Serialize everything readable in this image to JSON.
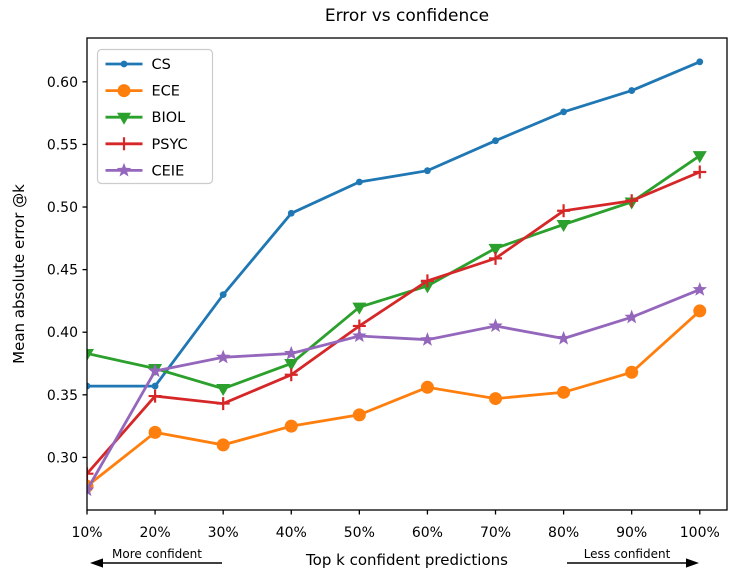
{
  "page": {
    "background": "#ffffff",
    "text_color": "#000000"
  },
  "chart_data": {
    "type": "line",
    "title": "Error vs confidence",
    "xlabel": "Top k confident predictions",
    "ylabel": "Mean absolute error @k",
    "x": [
      10,
      20,
      30,
      40,
      50,
      60,
      70,
      80,
      90,
      100
    ],
    "x_tick_labels": [
      "10%",
      "20%",
      "30%",
      "40%",
      "50%",
      "60%",
      "70%",
      "80%",
      "90%",
      "100%"
    ],
    "y_ticks": [
      0.3,
      0.35,
      0.4,
      0.45,
      0.5,
      0.55,
      0.6
    ],
    "y_tick_labels": [
      "0.30",
      "0.35",
      "0.40",
      "0.45",
      "0.50",
      "0.55",
      "0.60"
    ],
    "xlim": [
      10,
      104
    ],
    "ylim": [
      0.258,
      0.635
    ],
    "grid": false,
    "legend_position": "upper-left",
    "series": [
      {
        "name": "CS",
        "color": "#1f77b4",
        "marker": "dot",
        "values": [
          0.357,
          0.357,
          0.43,
          0.495,
          0.52,
          0.529,
          0.553,
          0.576,
          0.593,
          0.616
        ]
      },
      {
        "name": "ECE",
        "color": "#ff7f0e",
        "marker": "circle",
        "values": [
          0.277,
          0.32,
          0.31,
          0.325,
          0.334,
          0.356,
          0.347,
          0.352,
          0.368,
          0.417
        ]
      },
      {
        "name": "BIOL",
        "color": "#2ca02c",
        "marker": "triangle-down",
        "values": [
          0.383,
          0.371,
          0.355,
          0.375,
          0.42,
          0.437,
          0.467,
          0.486,
          0.504,
          0.541
        ]
      },
      {
        "name": "PSYC",
        "color": "#d62728",
        "marker": "plus",
        "values": [
          0.287,
          0.349,
          0.343,
          0.366,
          0.405,
          0.441,
          0.459,
          0.497,
          0.505,
          0.528
        ]
      },
      {
        "name": "CEIE",
        "color": "#9467bd",
        "marker": "star",
        "values": [
          0.274,
          0.369,
          0.38,
          0.383,
          0.397,
          0.394,
          0.405,
          0.395,
          0.412,
          0.434
        ]
      }
    ],
    "annotations": [
      {
        "text": "More confident",
        "direction": "left"
      },
      {
        "text": "Less confident",
        "direction": "right"
      }
    ]
  }
}
